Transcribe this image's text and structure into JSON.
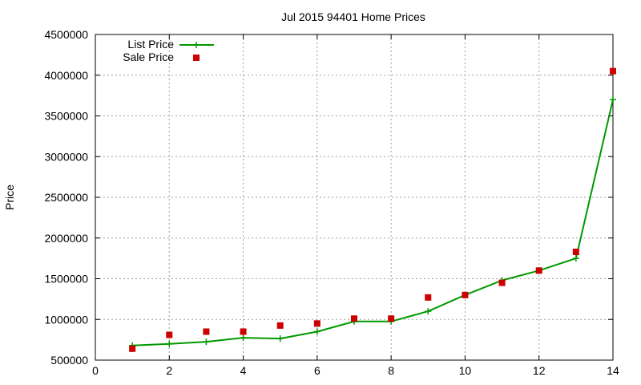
{
  "chart_data": {
    "type": "line",
    "title": "Jul 2015 94401 Home Prices",
    "xlabel": "",
    "ylabel": "Price",
    "xlim": [
      0,
      14
    ],
    "ylim": [
      500000,
      4500000
    ],
    "x_ticks": [
      0,
      2,
      4,
      6,
      8,
      10,
      12,
      14
    ],
    "y_ticks": [
      500000,
      1000000,
      1500000,
      2000000,
      2500000,
      3000000,
      3500000,
      4000000,
      4500000
    ],
    "grid": true,
    "legend_position": "top-left",
    "series": [
      {
        "name": "List Price",
        "style": "line-with-points",
        "color": "#009900",
        "x": [
          1,
          2,
          3,
          4,
          5,
          6,
          7,
          8,
          9,
          10,
          11,
          12,
          13,
          14
        ],
        "y": [
          680000,
          700000,
          725000,
          775000,
          765000,
          850000,
          975000,
          975000,
          1100000,
          1300000,
          1480000,
          1600000,
          1750000,
          3700000
        ]
      },
      {
        "name": "Sale Price",
        "style": "points",
        "color": "#cc0000",
        "x": [
          1,
          2,
          3,
          4,
          5,
          6,
          7,
          8,
          9,
          10,
          11,
          12,
          13,
          14
        ],
        "y": [
          640000,
          810000,
          850000,
          850000,
          925000,
          950000,
          1010000,
          1010000,
          1270000,
          1300000,
          1450000,
          1600000,
          1830000,
          4050000
        ]
      }
    ]
  }
}
